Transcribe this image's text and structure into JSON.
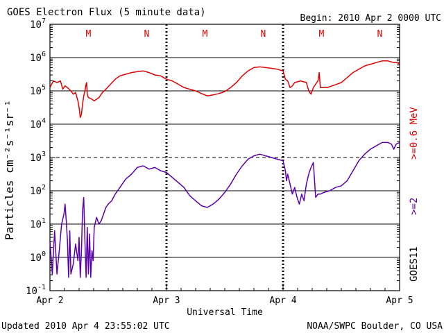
{
  "chart_data": {
    "type": "line",
    "title": "GOES Electron Flux (5 minute data)",
    "begin_label": "Begin: 2010 Apr 2 0000 UTC",
    "updated_label": "Updated 2010 Apr  4 23:55:02 UTC",
    "credit_label": "NOAA/SWPC Boulder, CO USA",
    "xlabel": "Universal Time",
    "ylabel": "Particles cm⁻²s⁻¹sr⁻¹",
    "right_label_red": ">=0.6 MeV",
    "right_label_purple": ">=2",
    "satellite_label": "GOES11",
    "xlim": [
      0,
      3
    ],
    "ylim_log10": [
      -1,
      7
    ],
    "yscale": "log",
    "x_tick_labels": [
      "Apr 2",
      "Apr 3",
      "Apr 4",
      "Apr 5"
    ],
    "x_tick_values": [
      0,
      1,
      2,
      3
    ],
    "y_tick_exponents": [
      -1,
      0,
      1,
      2,
      3,
      4,
      5,
      6,
      7
    ],
    "y_tick_base": "10",
    "grid": "horizontal at each decade, dashed line at 10^3",
    "mn_markers": [
      {
        "label": "M",
        "x": 0.33,
        "color": "#dd0000"
      },
      {
        "label": "N",
        "x": 0.83,
        "color": "#dd0000"
      },
      {
        "label": "M",
        "x": 1.33,
        "color": "#dd0000"
      },
      {
        "label": "N",
        "x": 1.83,
        "color": "#dd0000"
      },
      {
        "label": "M",
        "x": 2.33,
        "color": "#dd0000"
      },
      {
        "label": "N",
        "x": 2.83,
        "color": "#dd0000"
      }
    ],
    "series": [
      {
        "color": "#e00000",
        "log10_points": [
          [
            0.0,
            5.1
          ],
          [
            0.03,
            5.3
          ],
          [
            0.06,
            5.25
          ],
          [
            0.09,
            5.3
          ],
          [
            0.11,
            5.05
          ],
          [
            0.13,
            5.15
          ],
          [
            0.15,
            5.1
          ],
          [
            0.18,
            5.0
          ],
          [
            0.2,
            4.9
          ],
          [
            0.22,
            4.95
          ],
          [
            0.24,
            4.7
          ],
          [
            0.25,
            4.5
          ],
          [
            0.26,
            4.2
          ],
          [
            0.27,
            4.3
          ],
          [
            0.28,
            4.6
          ],
          [
            0.29,
            4.85
          ],
          [
            0.3,
            5.0
          ],
          [
            0.31,
            5.2
          ],
          [
            0.315,
            5.25
          ],
          [
            0.32,
            4.9
          ],
          [
            0.33,
            4.8
          ],
          [
            0.36,
            4.75
          ],
          [
            0.38,
            4.7
          ],
          [
            0.4,
            4.75
          ],
          [
            0.42,
            4.8
          ],
          [
            0.45,
            4.95
          ],
          [
            0.48,
            5.05
          ],
          [
            0.52,
            5.2
          ],
          [
            0.56,
            5.35
          ],
          [
            0.6,
            5.45
          ],
          [
            0.65,
            5.5
          ],
          [
            0.7,
            5.55
          ],
          [
            0.75,
            5.58
          ],
          [
            0.8,
            5.6
          ],
          [
            0.85,
            5.55
          ],
          [
            0.9,
            5.48
          ],
          [
            0.95,
            5.45
          ],
          [
            1.0,
            5.35
          ],
          [
            1.05,
            5.3
          ],
          [
            1.1,
            5.2
          ],
          [
            1.15,
            5.1
          ],
          [
            1.2,
            5.05
          ],
          [
            1.25,
            5.0
          ],
          [
            1.3,
            4.92
          ],
          [
            1.35,
            4.85
          ],
          [
            1.4,
            4.88
          ],
          [
            1.45,
            4.92
          ],
          [
            1.5,
            4.98
          ],
          [
            1.55,
            5.1
          ],
          [
            1.6,
            5.25
          ],
          [
            1.65,
            5.45
          ],
          [
            1.7,
            5.6
          ],
          [
            1.75,
            5.7
          ],
          [
            1.8,
            5.72
          ],
          [
            1.85,
            5.7
          ],
          [
            1.9,
            5.68
          ],
          [
            1.95,
            5.65
          ],
          [
            2.0,
            5.6
          ],
          [
            2.02,
            5.35
          ],
          [
            2.04,
            5.3
          ],
          [
            2.06,
            5.1
          ],
          [
            2.08,
            5.15
          ],
          [
            2.1,
            5.25
          ],
          [
            2.15,
            5.3
          ],
          [
            2.2,
            5.25
          ],
          [
            2.22,
            5.0
          ],
          [
            2.24,
            4.9
          ],
          [
            2.26,
            5.1
          ],
          [
            2.28,
            5.2
          ],
          [
            2.3,
            5.3
          ],
          [
            2.31,
            5.55
          ],
          [
            2.32,
            5.1
          ],
          [
            2.34,
            5.1
          ],
          [
            2.38,
            5.1
          ],
          [
            2.42,
            5.15
          ],
          [
            2.46,
            5.2
          ],
          [
            2.5,
            5.25
          ],
          [
            2.55,
            5.4
          ],
          [
            2.6,
            5.55
          ],
          [
            2.65,
            5.65
          ],
          [
            2.7,
            5.75
          ],
          [
            2.75,
            5.8
          ],
          [
            2.8,
            5.85
          ],
          [
            2.85,
            5.9
          ],
          [
            2.9,
            5.9
          ],
          [
            2.95,
            5.85
          ],
          [
            2.98,
            5.85
          ],
          [
            3.0,
            5.8
          ]
        ]
      },
      {
        "color": "#5a00a8",
        "log10_points": [
          [
            0.0,
            0.5
          ],
          [
            0.02,
            -0.5
          ],
          [
            0.04,
            0.8
          ],
          [
            0.06,
            -0.5
          ],
          [
            0.08,
            0.2
          ],
          [
            0.1,
            1.0
          ],
          [
            0.12,
            1.3
          ],
          [
            0.13,
            1.6
          ],
          [
            0.14,
            1.1
          ],
          [
            0.15,
            0.5
          ],
          [
            0.16,
            -0.6
          ],
          [
            0.17,
            0.8
          ],
          [
            0.18,
            -0.5
          ],
          [
            0.2,
            -0.2
          ],
          [
            0.22,
            0.4
          ],
          [
            0.24,
            -0.1
          ],
          [
            0.25,
            0.6
          ],
          [
            0.26,
            -0.6
          ],
          [
            0.27,
            0.2
          ],
          [
            0.28,
            1.4
          ],
          [
            0.29,
            1.8
          ],
          [
            0.3,
            0.5
          ],
          [
            0.31,
            -0.6
          ],
          [
            0.32,
            0.9
          ],
          [
            0.33,
            -0.5
          ],
          [
            0.34,
            0.7
          ],
          [
            0.35,
            -0.6
          ],
          [
            0.36,
            0.2
          ],
          [
            0.37,
            -0.1
          ],
          [
            0.38,
            0.9
          ],
          [
            0.4,
            1.2
          ],
          [
            0.42,
            1.0
          ],
          [
            0.44,
            1.1
          ],
          [
            0.46,
            1.3
          ],
          [
            0.48,
            1.5
          ],
          [
            0.5,
            1.6
          ],
          [
            0.53,
            1.7
          ],
          [
            0.56,
            1.9
          ],
          [
            0.6,
            2.1
          ],
          [
            0.65,
            2.35
          ],
          [
            0.7,
            2.5
          ],
          [
            0.75,
            2.7
          ],
          [
            0.8,
            2.75
          ],
          [
            0.85,
            2.65
          ],
          [
            0.9,
            2.7
          ],
          [
            0.95,
            2.6
          ],
          [
            1.0,
            2.55
          ],
          [
            1.05,
            2.4
          ],
          [
            1.1,
            2.25
          ],
          [
            1.15,
            2.1
          ],
          [
            1.2,
            1.85
          ],
          [
            1.25,
            1.7
          ],
          [
            1.3,
            1.55
          ],
          [
            1.35,
            1.5
          ],
          [
            1.4,
            1.6
          ],
          [
            1.45,
            1.75
          ],
          [
            1.5,
            1.95
          ],
          [
            1.55,
            2.2
          ],
          [
            1.6,
            2.5
          ],
          [
            1.65,
            2.75
          ],
          [
            1.7,
            2.95
          ],
          [
            1.75,
            3.05
          ],
          [
            1.8,
            3.1
          ],
          [
            1.85,
            3.05
          ],
          [
            1.9,
            3.0
          ],
          [
            1.95,
            2.95
          ],
          [
            2.0,
            2.9
          ],
          [
            2.02,
            2.6
          ],
          [
            2.03,
            2.3
          ],
          [
            2.04,
            2.5
          ],
          [
            2.06,
            2.2
          ],
          [
            2.08,
            1.9
          ],
          [
            2.1,
            2.1
          ],
          [
            2.12,
            1.8
          ],
          [
            2.14,
            1.6
          ],
          [
            2.16,
            1.9
          ],
          [
            2.18,
            1.7
          ],
          [
            2.2,
            2.2
          ],
          [
            2.22,
            2.5
          ],
          [
            2.24,
            2.7
          ],
          [
            2.26,
            2.85
          ],
          [
            2.27,
            2.3
          ],
          [
            2.28,
            1.8
          ],
          [
            2.3,
            1.9
          ],
          [
            2.32,
            1.9
          ],
          [
            2.35,
            1.95
          ],
          [
            2.4,
            2.0
          ],
          [
            2.45,
            2.1
          ],
          [
            2.5,
            2.15
          ],
          [
            2.55,
            2.3
          ],
          [
            2.6,
            2.6
          ],
          [
            2.65,
            2.9
          ],
          [
            2.7,
            3.1
          ],
          [
            2.75,
            3.25
          ],
          [
            2.8,
            3.35
          ],
          [
            2.85,
            3.45
          ],
          [
            2.9,
            3.45
          ],
          [
            2.93,
            3.4
          ],
          [
            2.95,
            3.25
          ],
          [
            2.97,
            3.4
          ],
          [
            3.0,
            3.45
          ]
        ]
      }
    ]
  }
}
